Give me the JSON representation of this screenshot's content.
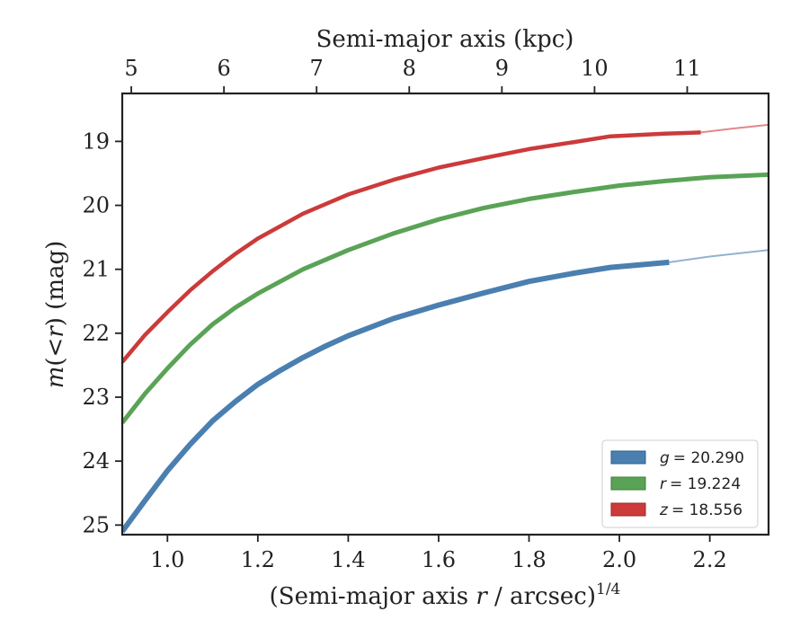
{
  "chart_data": {
    "type": "line",
    "xlabel_main": "(Semi-major axis ",
    "xlabel_var": "r",
    "xlabel_tail": " / arcsec)",
    "xlabel_exp": "1/4",
    "top_xlabel": "Semi-major axis (kpc)",
    "ylabel_var": "m",
    "ylabel_open": "(<",
    "ylabel_r": "r",
    "ylabel_close": ") (mag)",
    "xlim": [
      0.9,
      2.33
    ],
    "ylim": [
      25.15,
      18.25
    ],
    "y_inverted": true,
    "x_ticks": [
      1.0,
      1.2,
      1.4,
      1.6,
      1.8,
      2.0,
      2.2
    ],
    "x_tick_labels": [
      "1.0",
      "1.2",
      "1.4",
      "1.6",
      "1.8",
      "2.0",
      "2.2"
    ],
    "y_ticks": [
      19,
      20,
      21,
      22,
      23,
      24,
      25
    ],
    "y_tick_labels": [
      "19",
      "20",
      "21",
      "22",
      "23",
      "24",
      "25"
    ],
    "top_ticks_kpc": [
      5,
      6,
      7,
      8,
      9,
      10,
      11
    ],
    "top_tick_labels": [
      "5",
      "6",
      "7",
      "8",
      "9",
      "10",
      "11"
    ],
    "top_ticks_x": [
      0.92,
      1.125,
      1.33,
      1.535,
      1.74,
      1.945,
      2.15
    ],
    "legend_position": "lower right",
    "series": [
      {
        "name": "g",
        "legend_value": "= 20.290",
        "color": "#4a7fb0",
        "x": [
          0.9,
          0.95,
          1.0,
          1.05,
          1.1,
          1.15,
          1.2,
          1.25,
          1.3,
          1.35,
          1.4,
          1.5,
          1.6,
          1.7,
          1.8,
          1.9,
          1.98,
          2.11
        ],
        "y": [
          25.1,
          24.62,
          24.15,
          23.74,
          23.37,
          23.07,
          22.8,
          22.58,
          22.38,
          22.2,
          22.04,
          21.77,
          21.56,
          21.37,
          21.19,
          21.06,
          20.97,
          20.89
        ],
        "ext_x": [
          2.11,
          2.2,
          2.33
        ],
        "ext_y": [
          20.89,
          20.8,
          20.7
        ]
      },
      {
        "name": "r",
        "legend_value": "= 19.224",
        "color": "#5aa356",
        "x": [
          0.9,
          0.95,
          1.0,
          1.05,
          1.1,
          1.15,
          1.2,
          1.3,
          1.4,
          1.5,
          1.6,
          1.7,
          1.8,
          1.9,
          2.0,
          2.1,
          2.2,
          2.33
        ],
        "y": [
          23.4,
          22.95,
          22.55,
          22.18,
          21.86,
          21.6,
          21.38,
          21.0,
          20.7,
          20.44,
          20.22,
          20.04,
          19.9,
          19.79,
          19.69,
          19.62,
          19.56,
          19.52
        ],
        "ext_x": [],
        "ext_y": []
      },
      {
        "name": "z",
        "legend_value": "= 18.556",
        "color": "#cc3a3a",
        "x": [
          0.9,
          0.95,
          1.0,
          1.05,
          1.1,
          1.15,
          1.2,
          1.3,
          1.4,
          1.5,
          1.6,
          1.7,
          1.8,
          1.9,
          1.98,
          2.1,
          2.18
        ],
        "y": [
          22.45,
          22.03,
          21.67,
          21.33,
          21.03,
          20.76,
          20.52,
          20.13,
          19.83,
          19.6,
          19.41,
          19.26,
          19.12,
          19.01,
          18.92,
          18.88,
          18.86
        ],
        "ext_x": [
          2.18,
          2.25,
          2.33
        ],
        "ext_y": [
          18.86,
          18.8,
          18.74
        ]
      }
    ]
  }
}
